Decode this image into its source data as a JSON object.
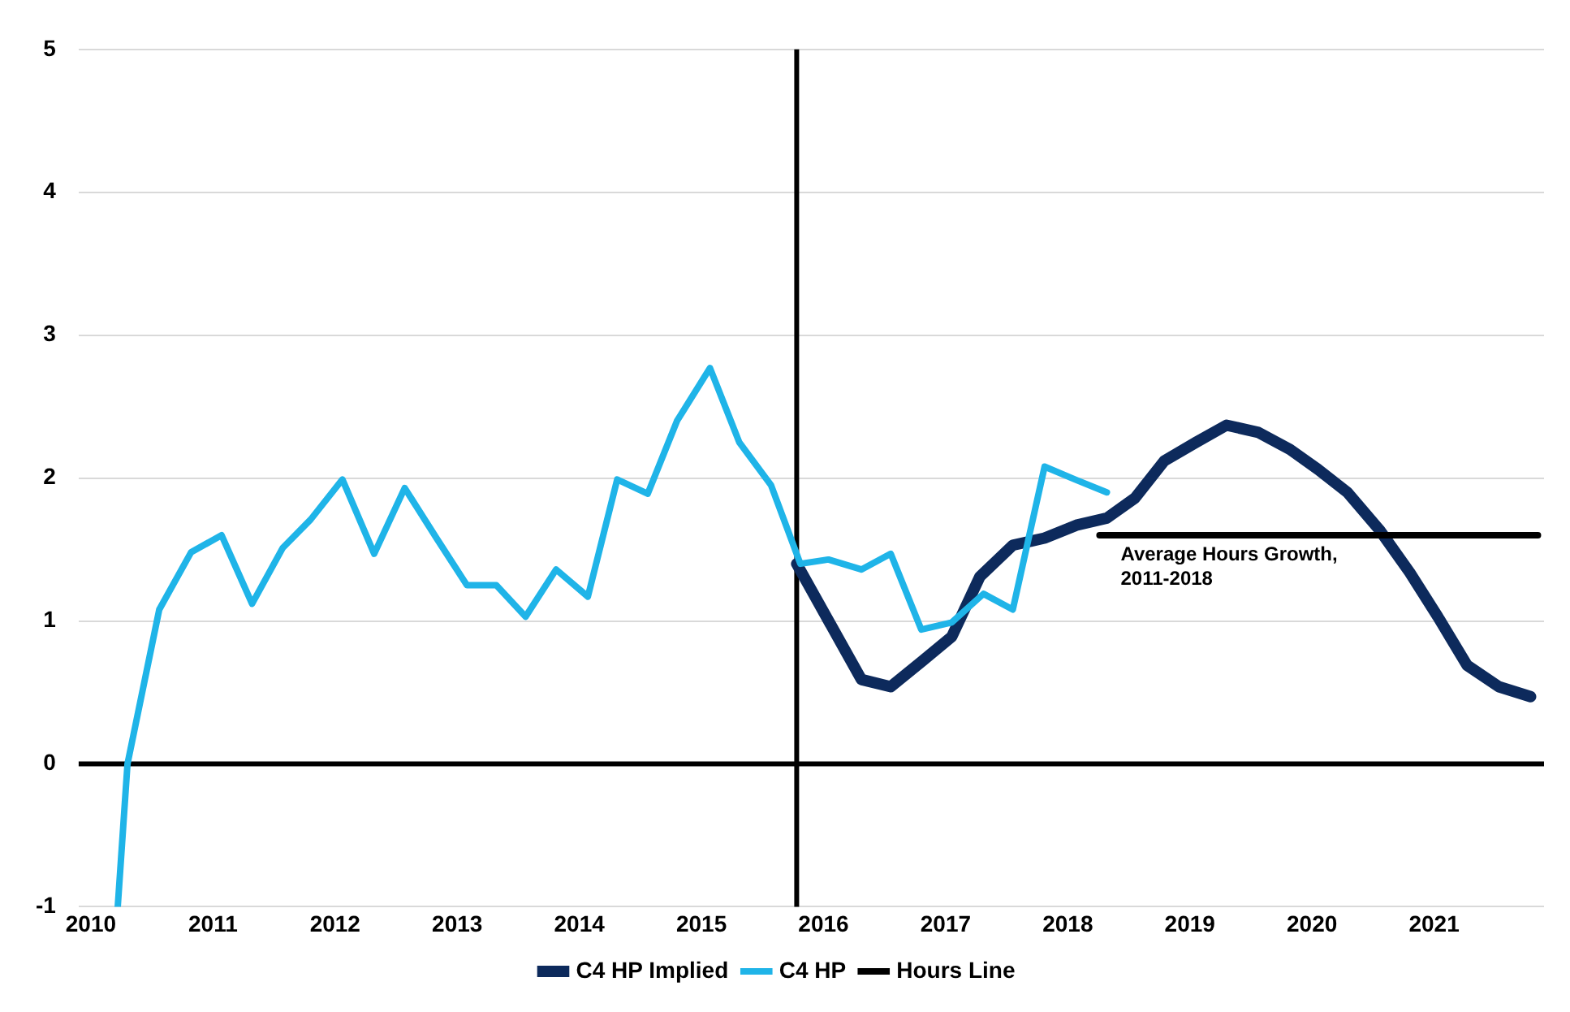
{
  "chart_data": {
    "type": "line",
    "xlim": [
      2009.9,
      2021.9
    ],
    "xticks": [
      2010,
      2011,
      2012,
      2013,
      2014,
      2015,
      2016,
      2017,
      2018,
      2019,
      2020,
      2021
    ],
    "ylim": [
      -1,
      5
    ],
    "yticks": [
      -1,
      0,
      1,
      2,
      3,
      4,
      5
    ],
    "grid": "y",
    "legend": "bottom",
    "marker": "none",
    "line_style": "solid",
    "series": [
      {
        "name": "C4 HP Implied",
        "color": "#0d2a5c",
        "x": [
          2015.78,
          2016.31,
          2016.55,
          2016.81,
          2017.05,
          2017.28,
          2017.55,
          2017.81,
          2018.07,
          2018.32,
          2018.55,
          2018.79,
          2019.05,
          2019.3,
          2019.56,
          2019.82,
          2020.05,
          2020.29,
          2020.55,
          2020.8,
          2021.03,
          2021.27,
          2021.53,
          2021.79
        ],
        "values": [
          1.4,
          0.59,
          0.54,
          0.72,
          0.89,
          1.31,
          1.53,
          1.58,
          1.67,
          1.72,
          1.86,
          2.12,
          2.25,
          2.37,
          2.32,
          2.2,
          2.06,
          1.9,
          1.64,
          1.34,
          1.03,
          0.69,
          0.54,
          0.47
        ]
      },
      {
        "name": "C4 HP",
        "color": "#1fb4e8",
        "x": [
          2010.22,
          2010.3,
          2010.56,
          2010.82,
          2011.07,
          2011.32,
          2011.57,
          2011.8,
          2012.06,
          2012.32,
          2012.57,
          2012.83,
          2013.08,
          2013.32,
          2013.56,
          2013.81,
          2014.07,
          2014.31,
          2014.56,
          2014.8,
          2015.07,
          2015.31,
          2015.57,
          2015.81,
          2016.04,
          2016.31,
          2016.55,
          2016.8,
          2017.05,
          2017.31,
          2017.55,
          2017.81,
          2018.06,
          2018.32
        ],
        "values": [
          -1,
          0,
          1.08,
          1.48,
          1.6,
          1.12,
          1.51,
          1.71,
          1.99,
          1.47,
          1.93,
          1.58,
          1.25,
          1.25,
          1.03,
          1.36,
          1.17,
          1.99,
          1.89,
          2.4,
          2.77,
          2.25,
          1.95,
          1.4,
          1.43,
          1.36,
          1.47,
          0.94,
          0.99,
          1.19,
          1.08,
          2.08,
          1.99,
          1.9
        ]
      },
      {
        "name": "Hours Line",
        "color": "#000000",
        "x": [
          2018.26,
          2021.85
        ],
        "values": [
          1.6,
          1.6
        ]
      }
    ],
    "ref_lines": [
      {
        "axis": "y",
        "value": 0,
        "color": "#000000"
      },
      {
        "axis": "x",
        "value": 2015.78,
        "color": "#000000"
      }
    ],
    "annotations": [
      {
        "text": "Average Hours Growth, 2011-2018",
        "x": 2018.3,
        "y": 1.6
      }
    ]
  }
}
